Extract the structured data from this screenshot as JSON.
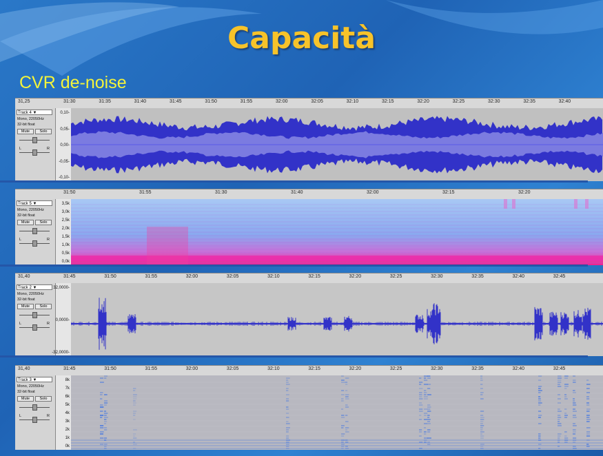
{
  "slide": {
    "title": "Capacità",
    "subtitle": "CVR de-noise"
  },
  "panels": [
    {
      "view": "waveform",
      "ruler": {
        "start": "31,25",
        "ticks": [
          "31:30",
          "31:35",
          "31:40",
          "31:45",
          "31:50",
          "31:55",
          "32:00",
          "32:05",
          "32:10",
          "32:15",
          "32:20",
          "32:25",
          "32:30",
          "32:35",
          "32:40"
        ]
      },
      "track": {
        "name": "Track 4",
        "format": "Mono, 22050Hz",
        "bits": "32-bit float",
        "mute": "Mute",
        "solo": "Solo",
        "left": "L",
        "right": "R"
      },
      "yticks": [
        "0,10-",
        "0,05-",
        "0,00-",
        "-0,05-",
        "-0,10-"
      ],
      "colors": {
        "bg": "#c0c0c0",
        "wave": "#3232c8",
        "rms": "#7b7be0"
      }
    },
    {
      "view": "spectrogram",
      "ruler": {
        "start": "",
        "ticks": [
          "31:50",
          "31:55",
          "31:30",
          "31:40",
          "32:00",
          "32:15",
          "32:20"
        ]
      },
      "track": {
        "name": "Track 5",
        "format": "Mono, 22050Hz",
        "bits": "32-bit float",
        "mute": "Mute",
        "solo": "Solo",
        "left": "L",
        "right": "R"
      },
      "yticks": [
        "3,5k",
        "3,0k",
        "2,5k",
        "2,0k",
        "1,5k",
        "1,0k",
        "0,5k",
        "0,0k"
      ],
      "colors": {
        "bg": "#8fb8f0",
        "band": "#ee2aa8"
      }
    },
    {
      "view": "waveform",
      "ruler": {
        "start": "31,40",
        "ticks": [
          "31:45",
          "31:50",
          "31:55",
          "32:00",
          "32:05",
          "32:10",
          "32:15",
          "32:20",
          "32:25",
          "32:30",
          "32:35",
          "32:40",
          "32:45"
        ]
      },
      "track": {
        "name": "Track 2",
        "format": "Mono, 22050Hz",
        "bits": "32-bit float",
        "mute": "Mute",
        "solo": "Solo",
        "left": "L",
        "right": "R"
      },
      "yticks": [
        "32,0000-",
        "0,0000-",
        "-32,0000-"
      ],
      "colors": {
        "bg": "#c6c6c6",
        "wave": "#3232c8"
      }
    },
    {
      "view": "spectrogram",
      "ruler": {
        "start": "31,40",
        "ticks": [
          "31:45",
          "31:50",
          "31:55",
          "32:00",
          "32:05",
          "32:10",
          "32:15",
          "32:20",
          "32:25",
          "32:30",
          "32:35",
          "32:40",
          "32:45"
        ]
      },
      "track": {
        "name": "Track 3",
        "format": "Mono, 22050Hz",
        "bits": "32-bit float",
        "mute": "Mute",
        "solo": "Solo",
        "left": "L",
        "right": "R"
      },
      "yticks": [
        "8k",
        "7k",
        "6k",
        "5k",
        "4k",
        "3k",
        "2k",
        "1k",
        "0k"
      ],
      "colors": {
        "bg": "#b8b8c0",
        "band": "#4a7ae0"
      }
    }
  ]
}
